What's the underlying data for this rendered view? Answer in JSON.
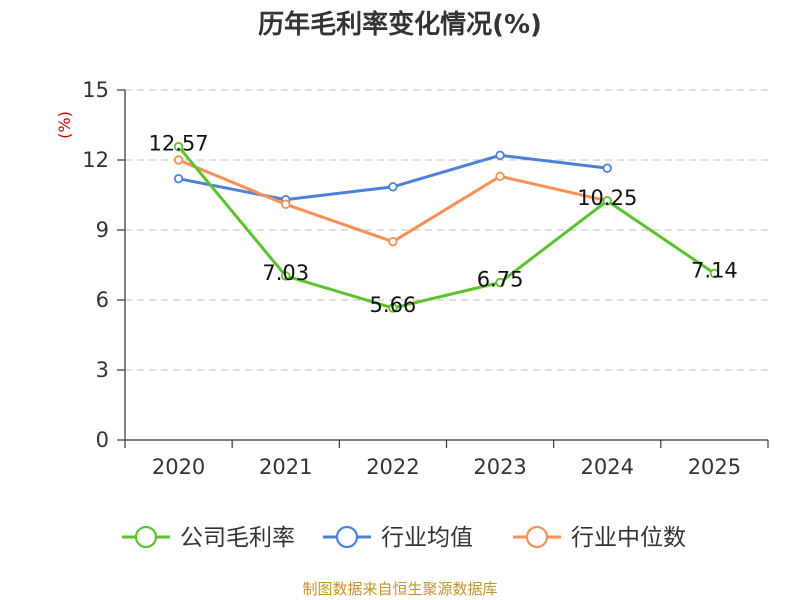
{
  "title": "历年毛利率变化情况(%)",
  "footer": "制图数据来自恒生聚源数据库",
  "chart_data": {
    "type": "line",
    "title": "历年毛利率变化情况(%)",
    "ylabel": "(%)",
    "categories": [
      "2020",
      "2021",
      "2022",
      "2023",
      "2024",
      "2025"
    ],
    "ylim": [
      0,
      15
    ],
    "yticks": [
      0,
      3,
      6,
      9,
      12,
      15
    ],
    "grid": true,
    "legend_position": "bottom",
    "series": [
      {
        "name": "公司毛利率",
        "color": "#5cc22e",
        "values": [
          12.57,
          7.03,
          5.66,
          6.75,
          10.25,
          7.14
        ],
        "labels": [
          "12.57",
          "7.03",
          "5.66",
          "6.75",
          "10.25",
          "7.14"
        ]
      },
      {
        "name": "行业均值",
        "color": "#4d80d9",
        "values": [
          11.2,
          10.3,
          10.85,
          12.2,
          11.65,
          null
        ]
      },
      {
        "name": "行业中位数",
        "color": "#f79156",
        "values": [
          12.0,
          10.1,
          8.5,
          11.3,
          10.25,
          null
        ]
      }
    ]
  }
}
